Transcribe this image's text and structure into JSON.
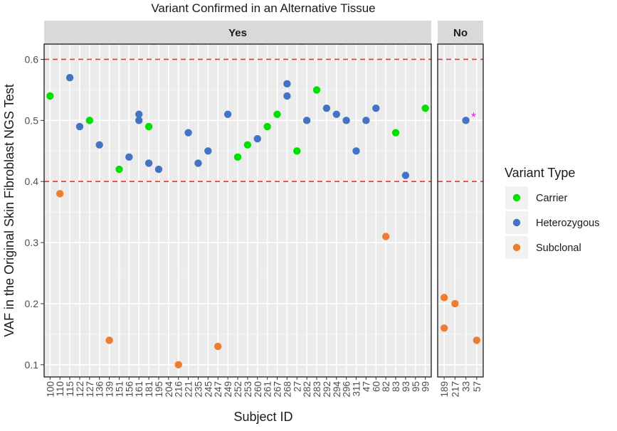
{
  "chart_data": {
    "type": "scatter",
    "title": "Variant Confirmed in an Alternative Tissue",
    "xlabel": "Subject ID",
    "ylabel": "VAF in the Original Skin Fibroblast NGS Test",
    "ylim": [
      0.08,
      0.625
    ],
    "yticks": [
      0.1,
      0.2,
      0.3,
      0.4,
      0.5,
      0.6
    ],
    "ytick_labels": [
      "0.1",
      "0.2",
      "0.3",
      "0.4",
      "0.5",
      "0.6"
    ],
    "reference_lines": [
      0.4,
      0.6
    ],
    "grid": true,
    "legend": {
      "title": "Variant Type",
      "position": "right",
      "entries": [
        {
          "label": "Carrier",
          "color": "#00e000"
        },
        {
          "label": "Heterozygous",
          "color": "#4472c4"
        },
        {
          "label": "Subclonal",
          "color": "#ed7d31"
        }
      ]
    },
    "panels": [
      {
        "label": "Yes",
        "categories": [
          "100",
          "110",
          "115",
          "122",
          "127",
          "136",
          "139",
          "151",
          "156",
          "161",
          "181",
          "195",
          "204",
          "216",
          "221",
          "235",
          "245",
          "247",
          "249",
          "252",
          "253",
          "260",
          "261",
          "267",
          "268",
          "27",
          "282",
          "283",
          "292",
          "294",
          "296",
          "311",
          "47",
          "60",
          "82",
          "83",
          "93",
          "95",
          "99"
        ],
        "series": [
          {
            "name": "Carrier",
            "points": [
              [
                "100",
                0.54
              ],
              [
                "127",
                0.5
              ],
              [
                "151",
                0.42
              ],
              [
                "181",
                0.49
              ],
              [
                "252",
                0.44
              ],
              [
                "253",
                0.46
              ],
              [
                "261",
                0.49
              ],
              [
                "267",
                0.51
              ],
              [
                "27",
                0.45
              ],
              [
                "283",
                0.55
              ],
              [
                "83",
                0.48
              ],
              [
                "99",
                0.52
              ]
            ]
          },
          {
            "name": "Heterozygous",
            "points": [
              [
                "115",
                0.57
              ],
              [
                "122",
                0.49
              ],
              [
                "136",
                0.46
              ],
              [
                "156",
                0.44
              ],
              [
                "161",
                0.51
              ],
              [
                "161",
                0.5
              ],
              [
                "181",
                0.43
              ],
              [
                "195",
                0.42
              ],
              [
                "221",
                0.48
              ],
              [
                "235",
                0.43
              ],
              [
                "245",
                0.45
              ],
              [
                "249",
                0.51
              ],
              [
                "260",
                0.47
              ],
              [
                "268",
                0.56
              ],
              [
                "268",
                0.54
              ],
              [
                "282",
                0.5
              ],
              [
                "292",
                0.52
              ],
              [
                "294",
                0.51
              ],
              [
                "296",
                0.5
              ],
              [
                "311",
                0.45
              ],
              [
                "47",
                0.5
              ],
              [
                "60",
                0.52
              ],
              [
                "93",
                0.41
              ]
            ]
          },
          {
            "name": "Subclonal",
            "points": [
              [
                "110",
                0.38
              ],
              [
                "139",
                0.14
              ],
              [
                "216",
                0.1
              ],
              [
                "247",
                0.13
              ],
              [
                "82",
                0.31
              ]
            ]
          }
        ]
      },
      {
        "label": "No",
        "categories": [
          "189",
          "217",
          "33",
          "57"
        ],
        "series": [
          {
            "name": "Carrier",
            "points": []
          },
          {
            "name": "Heterozygous",
            "points": [
              [
                "33",
                0.5
              ]
            ]
          },
          {
            "name": "Subclonal",
            "points": [
              [
                "189",
                0.21
              ],
              [
                "189",
                0.16
              ],
              [
                "217",
                0.2
              ],
              [
                "57",
                0.14
              ]
            ]
          }
        ]
      }
    ],
    "annotations": [
      {
        "text": "*",
        "panel": "No",
        "category": "33",
        "y": 0.51,
        "color": "#ff00ff"
      }
    ]
  }
}
